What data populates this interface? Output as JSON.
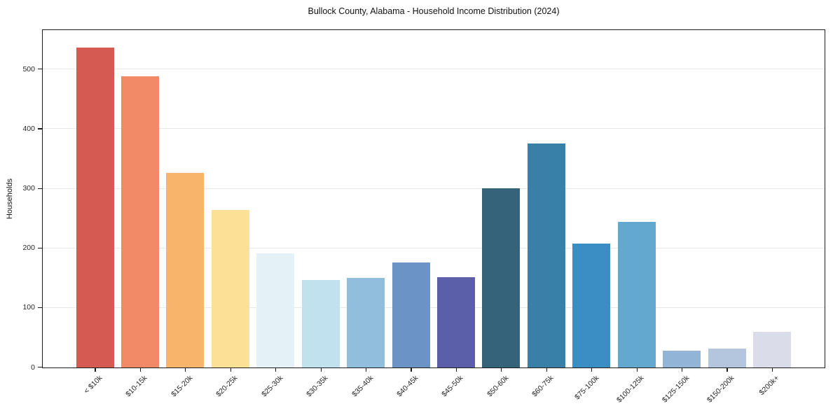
{
  "chart_data": {
    "type": "bar",
    "title": "Bullock County, Alabama - Household Income Distribution (2024)",
    "xlabel": "",
    "ylabel": "Households",
    "categories": [
      "< $10k",
      "$10-15k",
      "$15-20k",
      "$20-25k",
      "$25-30k",
      "$30-35k",
      "$35-40k",
      "$40-45k",
      "$45-50k",
      "$50-60k",
      "$60-75k",
      "$75-100k",
      "$100-125k",
      "$125-150k",
      "$150-200k",
      "$200k+"
    ],
    "values": [
      537,
      489,
      327,
      264,
      192,
      147,
      150,
      176,
      151,
      301,
      376,
      208,
      244,
      28,
      32,
      60
    ],
    "bar_colors": [
      "#d45a52",
      "#f38a67",
      "#f9b46c",
      "#fce095",
      "#e4f1f7",
      "#c2e1ee",
      "#92bedd",
      "#6b93c6",
      "#5b5fa9",
      "#35637a",
      "#3980a8",
      "#3a8ec4",
      "#62a8cf",
      "#92b4d6",
      "#b4c6de",
      "#dadce9"
    ],
    "ylim": [
      0,
      565
    ],
    "yticks": [
      0,
      100,
      200,
      300,
      400,
      500
    ],
    "grid": "horizontal-only",
    "legend": "none",
    "background": "#ffffff"
  }
}
